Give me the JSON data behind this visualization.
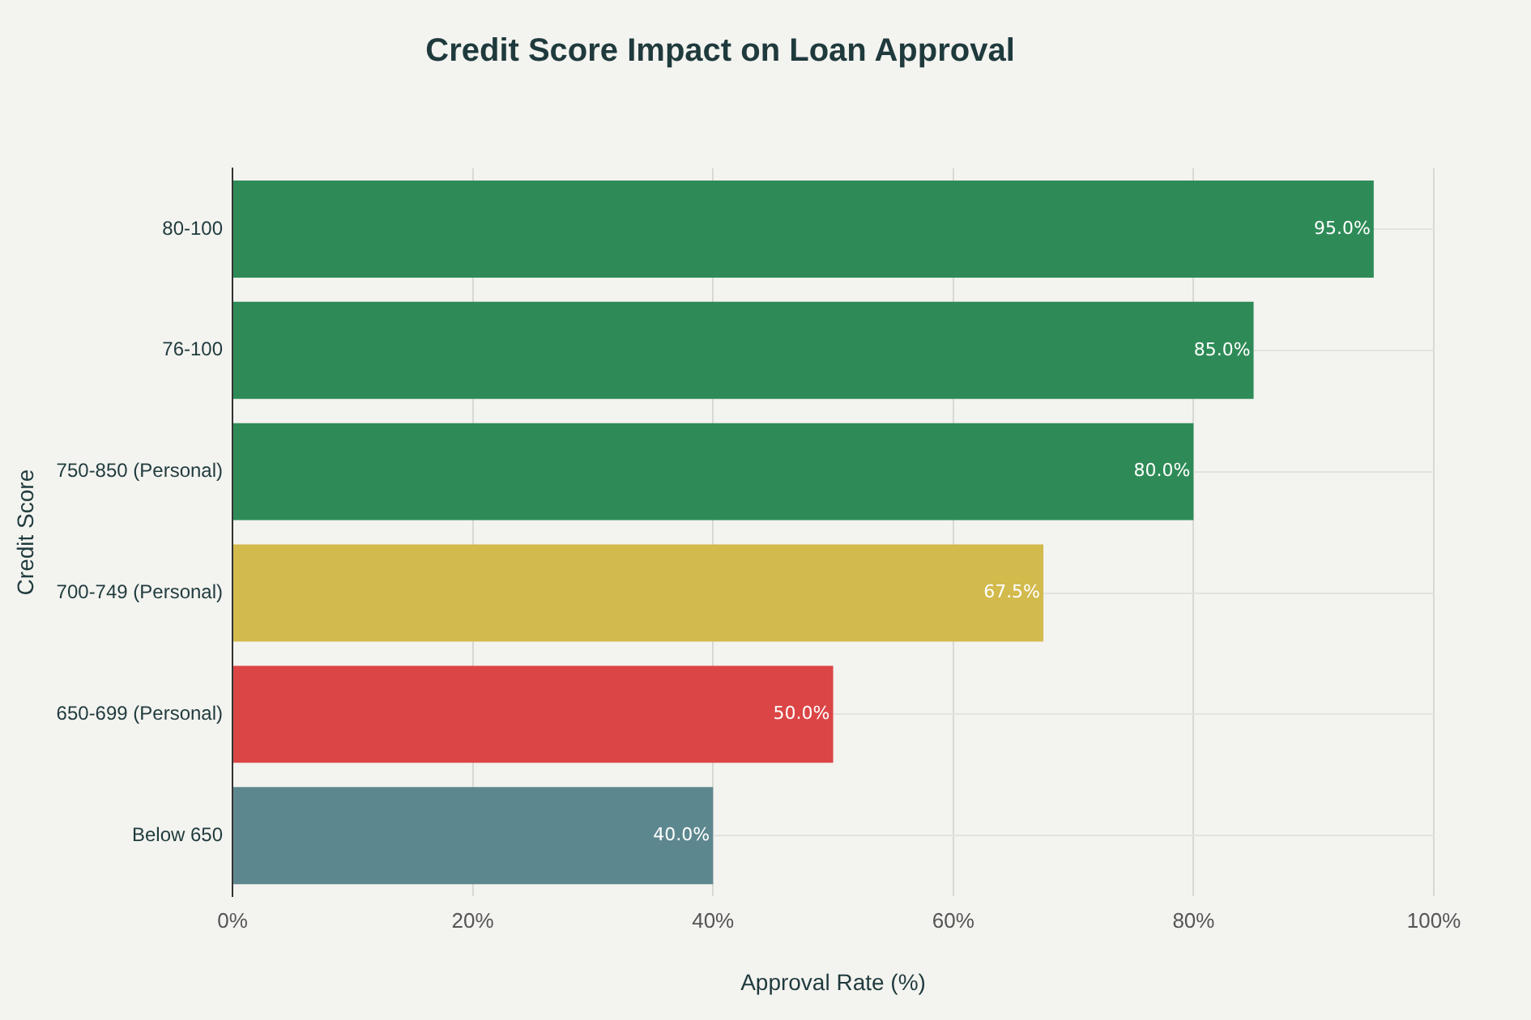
{
  "chart_data": {
    "type": "bar",
    "orientation": "horizontal",
    "title": "Credit Score Impact on Loan Approval",
    "xlabel": "Approval Rate (%)",
    "ylabel": "Credit Score",
    "categories": [
      "80-100",
      "76-100",
      "750-850 (Personal)",
      "700-749 (Personal)",
      "650-699 (Personal)",
      "Below 650"
    ],
    "values": [
      95,
      85,
      80,
      67.5,
      50,
      40
    ],
    "colors": [
      "#2e8b57",
      "#2e8b57",
      "#2e8b57",
      "#d2ba4c",
      "#db4545",
      "#5d878f"
    ],
    "value_labels": [
      "95.0%",
      "85.0%",
      "80.0%",
      "67.5%",
      "50.0%",
      "40.0%"
    ],
    "xlim": [
      0,
      100
    ],
    "xticks": [
      {
        "value": 0,
        "label": "0%"
      },
      {
        "value": 20,
        "label": "20%"
      },
      {
        "value": 40,
        "label": "40%"
      },
      {
        "value": 60,
        "label": "60%"
      },
      {
        "value": 80,
        "label": "80%"
      },
      {
        "value": 100,
        "label": "100%"
      }
    ],
    "grid": true,
    "legend": false
  }
}
